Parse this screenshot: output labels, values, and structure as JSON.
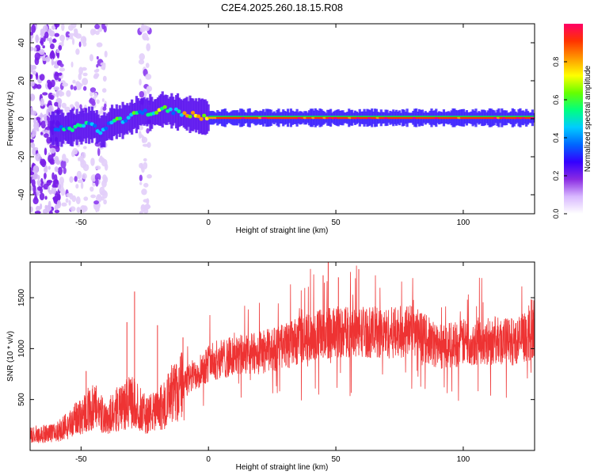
{
  "page": {
    "title": "C2E4.2025.260.18.15.R08"
  },
  "chart_data": [
    {
      "type": "heatmap",
      "title": "C2E4.2025.260.18.15.R08",
      "xlabel": "Height of straight line (km)",
      "ylabel": "Frequency (Hz)",
      "xlim": [
        -70,
        128
      ],
      "ylim": [
        -50,
        50
      ],
      "xticks": [
        -50,
        0,
        50,
        100
      ],
      "yticks": [
        -40,
        -20,
        0,
        20,
        40
      ],
      "colorbar": {
        "label": "Normalized spectral amplitude",
        "range": [
          0,
          1
        ],
        "ticks": [
          0.0,
          0.2,
          0.4,
          0.6,
          0.8
        ],
        "colors": [
          "#ffffff",
          "#d8b8ff",
          "#8a2be2",
          "#3300ff",
          "#0066ff",
          "#00ccff",
          "#00ff80",
          "#66ff00",
          "#ffff00",
          "#ff9900",
          "#ff3300",
          "#ff0066"
        ]
      },
      "ridge": {
        "x": [
          -60,
          -55,
          -50,
          -45,
          -42,
          -38,
          -34,
          -30,
          -26,
          -22,
          -18,
          -14,
          -10,
          -6,
          -2,
          0,
          10,
          20,
          40,
          60,
          80,
          100,
          128
        ],
        "y": [
          -5,
          -5,
          -4,
          -3,
          -7,
          -2,
          -1,
          1,
          4,
          3,
          5,
          4,
          3,
          2,
          1,
          0.5,
          0.5,
          0.5,
          0.5,
          0.5,
          0.5,
          0.5,
          0.5
        ]
      },
      "grid": false
    },
    {
      "type": "line",
      "xlabel": "Height of straight line (km)",
      "ylabel": "SNR (10 * v/v)",
      "xlim": [
        -70,
        128
      ],
      "ylim": [
        0,
        1850
      ],
      "xticks": [
        -50,
        0,
        50,
        100
      ],
      "yticks": [
        500,
        1000,
        1500
      ],
      "color": "#ee3333",
      "envelope": {
        "x": [
          -70,
          -60,
          -55,
          -50,
          -45,
          -40,
          -35,
          -30,
          -25,
          -20,
          -15,
          -10,
          -5,
          0,
          5,
          10,
          20,
          30,
          40,
          50,
          60,
          70,
          80,
          90,
          100,
          110,
          120,
          128
        ],
        "y": [
          150,
          170,
          250,
          350,
          420,
          320,
          420,
          480,
          360,
          380,
          520,
          640,
          760,
          860,
          900,
          920,
          960,
          1020,
          1120,
          1160,
          1170,
          1150,
          1180,
          1020,
          1060,
          1080,
          1070,
          1150
        ]
      },
      "spikes": [
        {
          "x": -48,
          "y": 780
        },
        {
          "x": -32,
          "y": 1260
        },
        {
          "x": -29,
          "y": 1560
        },
        {
          "x": -20,
          "y": 1230
        },
        {
          "x": -10,
          "y": 1110
        },
        {
          "x": 45,
          "y": 1720
        },
        {
          "x": 47,
          "y": 1850
        },
        {
          "x": 51,
          "y": 1700
        },
        {
          "x": 59,
          "y": 1780
        },
        {
          "x": 127,
          "y": 1480
        }
      ],
      "grid": false
    }
  ]
}
